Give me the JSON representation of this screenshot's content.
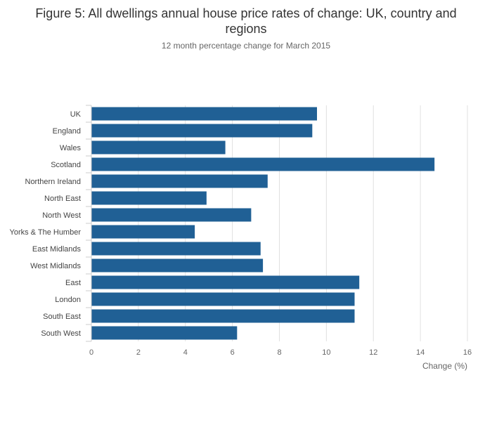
{
  "chart_data": {
    "type": "bar",
    "orientation": "horizontal",
    "title": "Figure 5: All dwellings annual house price rates of change: UK, country and regions",
    "subtitle": "12 month percentage change for March 2015",
    "xlabel": "Change (%)",
    "ylabel": "",
    "xlim": [
      0,
      16
    ],
    "xticks": [
      0,
      2,
      4,
      6,
      8,
      10,
      12,
      14,
      16
    ],
    "grid": true,
    "categories": [
      "UK",
      "England",
      "Wales",
      "Scotland",
      "Northern Ireland",
      "North East",
      "North West",
      "Yorks & The Humber",
      "East Midlands",
      "West Midlands",
      "East",
      "London",
      "South East",
      "South West"
    ],
    "values": [
      9.6,
      9.4,
      5.7,
      14.6,
      7.5,
      4.9,
      6.8,
      4.4,
      7.2,
      7.3,
      11.4,
      11.2,
      11.2,
      6.2
    ],
    "bar_color": "#206095"
  }
}
